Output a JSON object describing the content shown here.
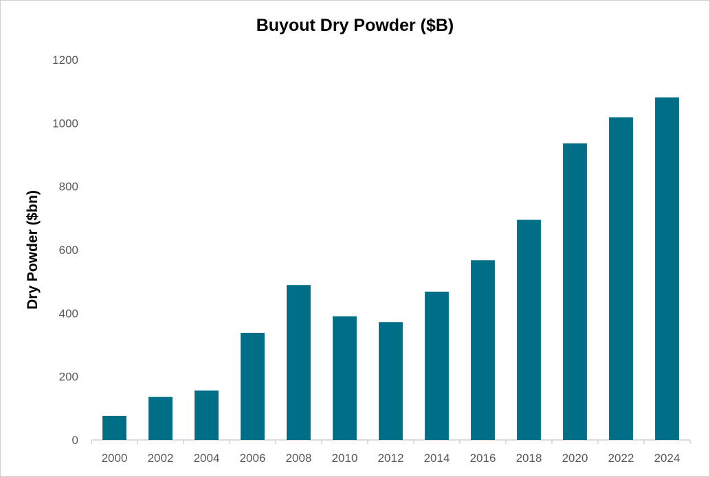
{
  "chart_data": {
    "type": "bar",
    "title": "Buyout Dry Powder ($B)",
    "xlabel": "",
    "ylabel": "Dry Powder ($bn)",
    "categories": [
      "2000",
      "2002",
      "2004",
      "2006",
      "2008",
      "2010",
      "2012",
      "2014",
      "2016",
      "2018",
      "2020",
      "2022",
      "2024"
    ],
    "values": [
      76,
      136,
      156,
      338,
      489,
      390,
      372,
      468,
      567,
      695,
      936,
      1018,
      1081
    ],
    "ylim": [
      0,
      1200
    ],
    "yticks": [
      0,
      200,
      400,
      600,
      800,
      1000,
      1200
    ],
    "grid": false,
    "legend": "none",
    "bar_color": "#006E87"
  }
}
